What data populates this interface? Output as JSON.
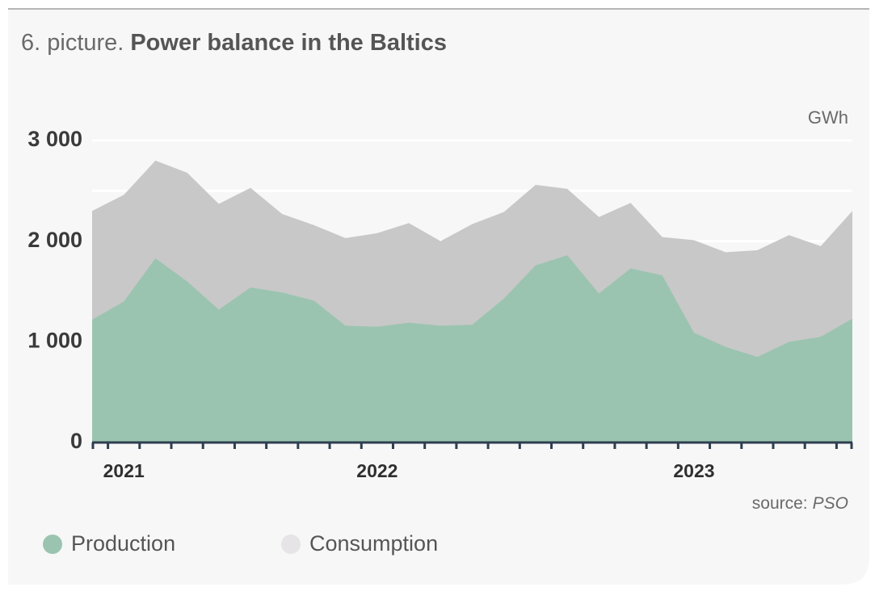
{
  "chart_data": {
    "type": "area",
    "title_prefix": "6. picture.",
    "title": "Power balance in the Baltics",
    "unit": "GWh",
    "source_prefix": "source:",
    "source": "PSO",
    "categories": [
      null,
      "2021",
      null,
      null,
      null,
      null,
      null,
      null,
      null,
      "2022",
      null,
      null,
      null,
      null,
      null,
      null,
      null,
      null,
      null,
      "2023",
      null,
      null,
      null,
      null,
      null
    ],
    "series": [
      {
        "name": "Consumption",
        "color": "#c8c8c8",
        "legend_color": "#e6e4e6",
        "values": [
          2300,
          2460,
          2800,
          2680,
          2370,
          2530,
          2270,
          2160,
          2030,
          2080,
          2180,
          2000,
          2170,
          2290,
          2560,
          2520,
          2240,
          2380,
          2040,
          2010,
          1890,
          1910,
          2060,
          1950,
          2300
        ]
      },
      {
        "name": "Production",
        "color": "#9bc4b0",
        "legend_color": "#9bc4b0",
        "values": [
          1220,
          1400,
          1830,
          1600,
          1320,
          1540,
          1490,
          1410,
          1160,
          1150,
          1190,
          1160,
          1170,
          1430,
          1760,
          1860,
          1480,
          1730,
          1660,
          1090,
          950,
          850,
          1000,
          1050,
          1230
        ]
      }
    ],
    "ylim": [
      0,
      3000
    ],
    "yticks": [
      0,
      {
        "value": 1000,
        "label": "1 000"
      },
      {
        "value": 2000,
        "label": "2 000"
      },
      {
        "value": 3000,
        "label": "3 000"
      }
    ],
    "minor_yticks": [
      500,
      1500,
      2500
    ],
    "grid": true
  }
}
